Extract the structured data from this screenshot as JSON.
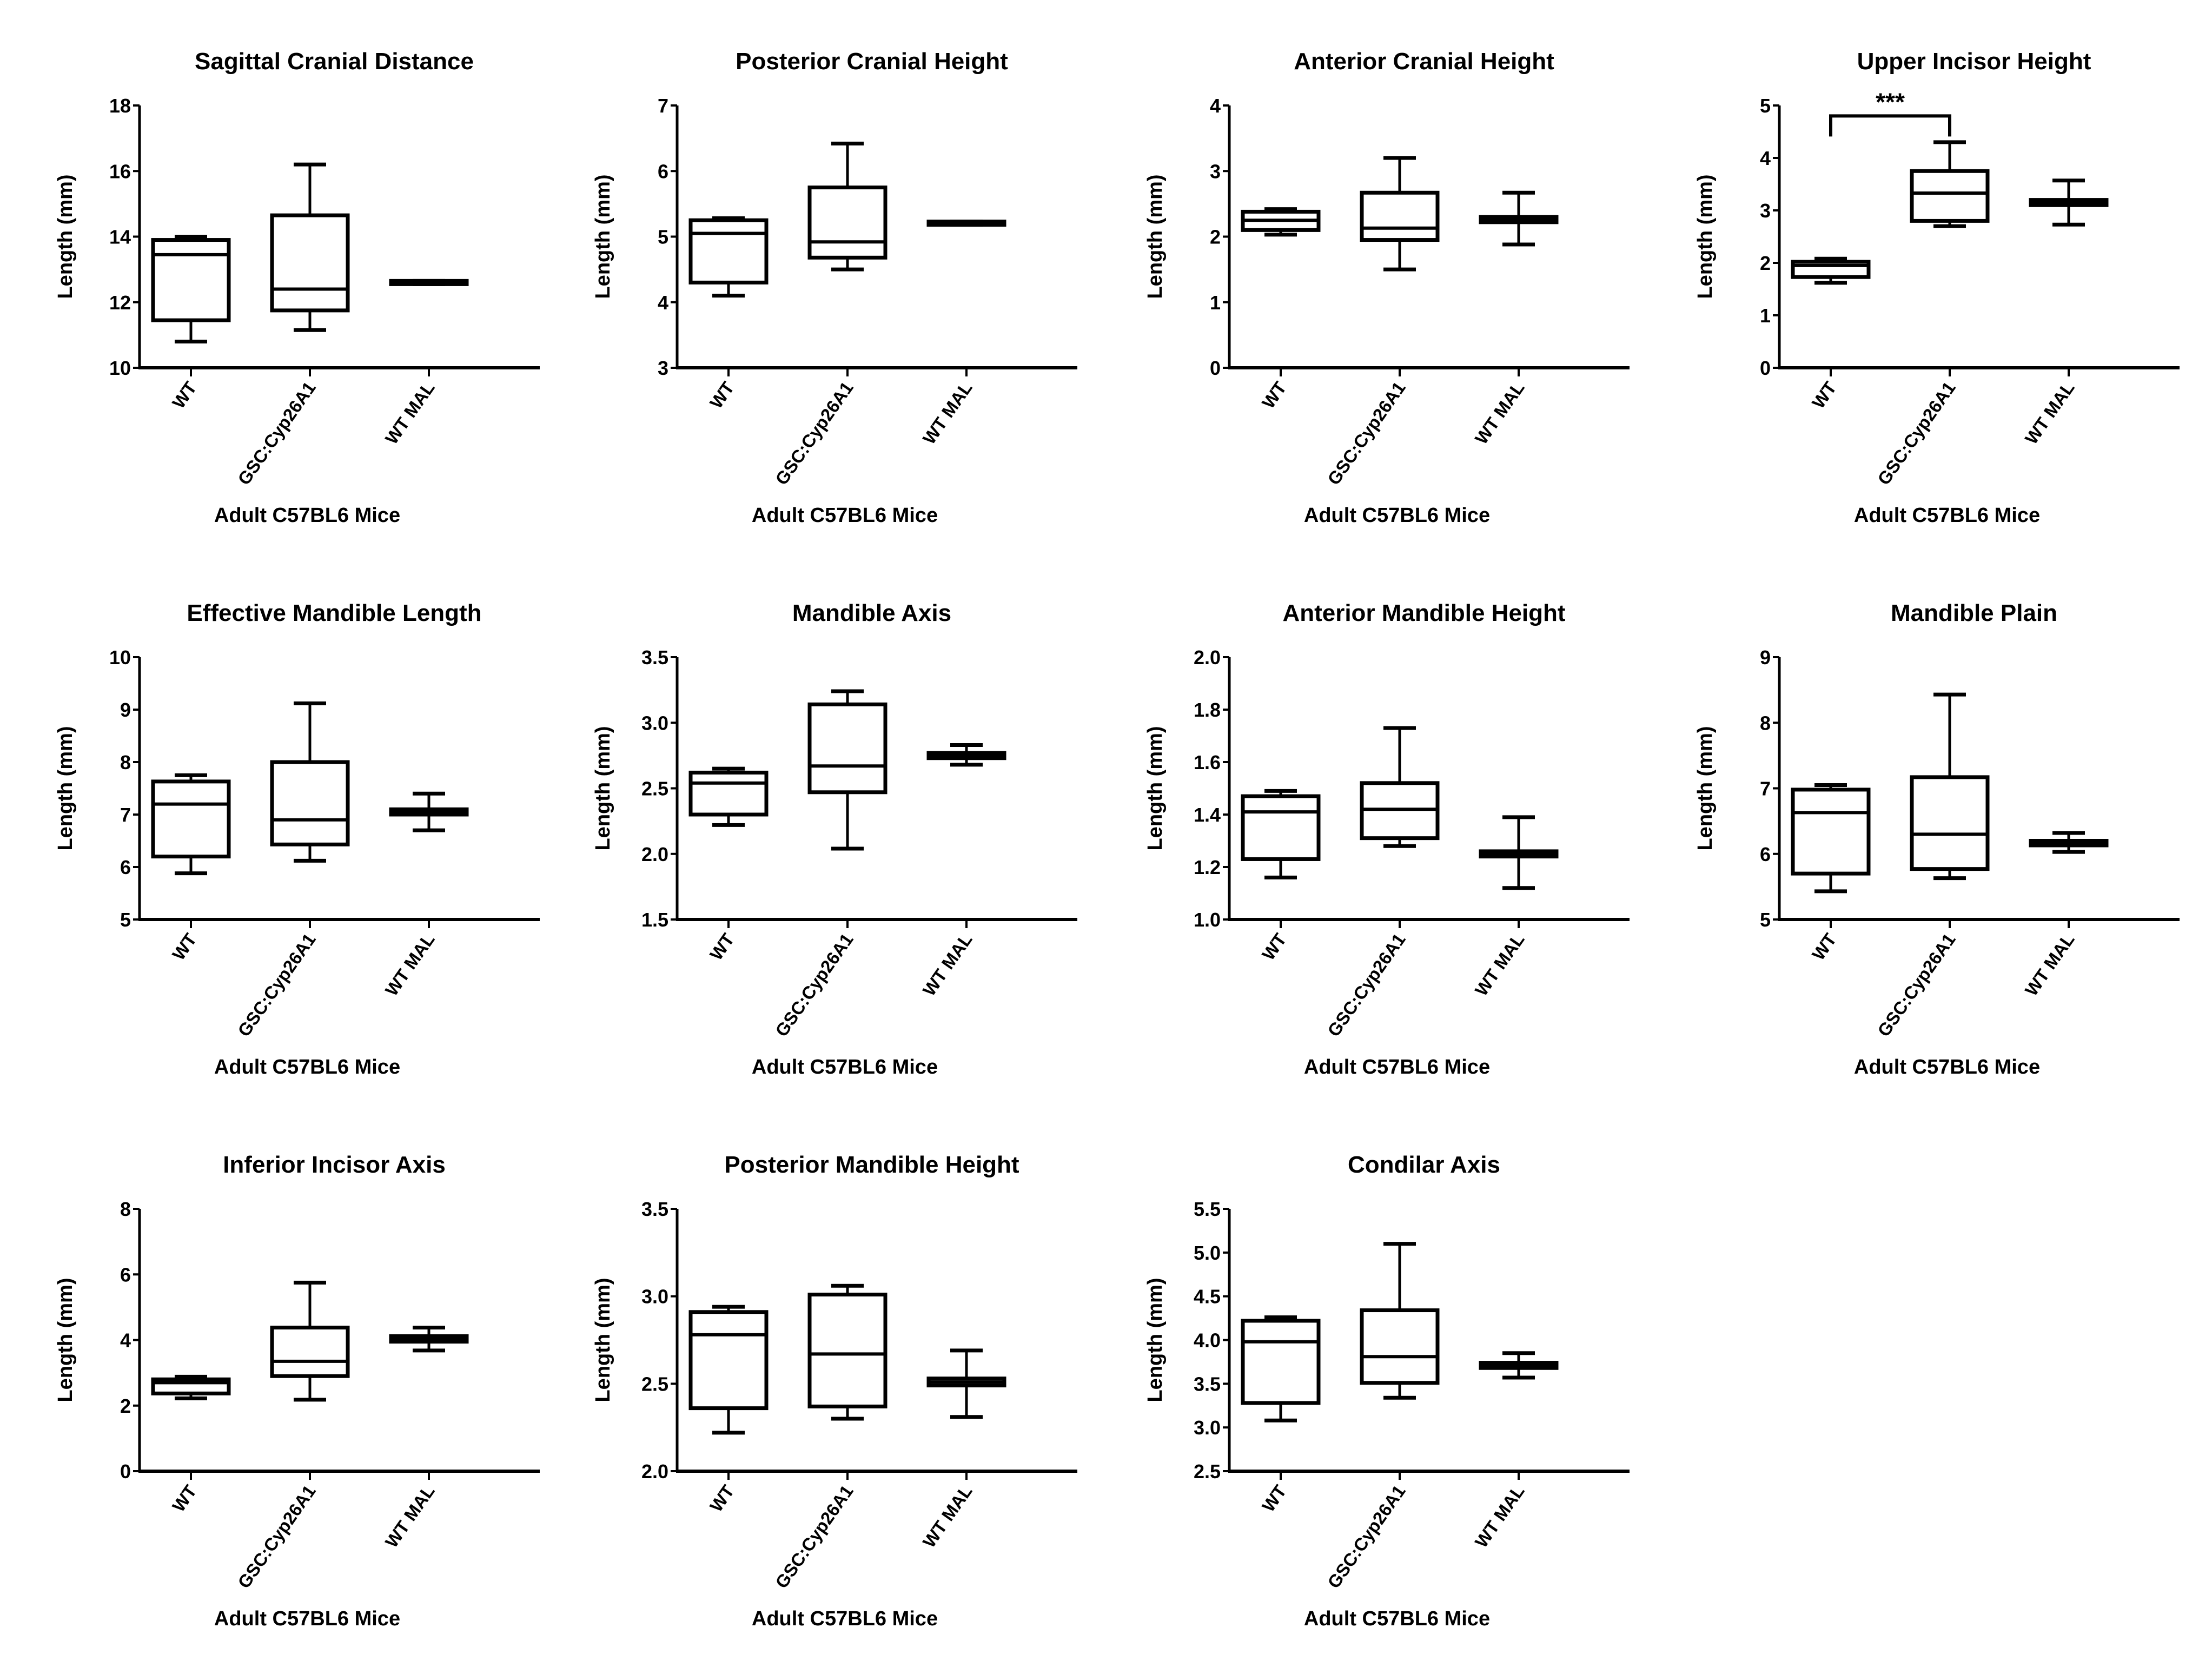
{
  "figure": {
    "shared_xlabel": "Adult C57BL6 Mice",
    "shared_ylabel": "Length (mm)",
    "categories": [
      "WT",
      "GSC:Cyp26A1",
      "WT MAL"
    ]
  },
  "chart_data": [
    {
      "type": "box",
      "title": "Sagittal Cranial Distance",
      "xlabel": "Adult C57BL6 Mice",
      "ylabel": "Length (mm)",
      "categories": [
        "WT",
        "GSC:Cyp26A1",
        "WT MAL"
      ],
      "ylim": [
        10,
        18
      ],
      "yticks": [
        10,
        12,
        14,
        16,
        18
      ],
      "ytick_labels": [
        "10",
        "12",
        "14",
        "16",
        "18"
      ],
      "boxes": [
        {
          "min": 10.8,
          "q1": 11.45,
          "median": 13.45,
          "q3": 13.9,
          "max": 14.0
        },
        {
          "min": 11.15,
          "q1": 11.75,
          "median": 12.4,
          "q3": 14.65,
          "max": 16.2
        },
        {
          "min": 12.55,
          "q1": 12.55,
          "median": 12.6,
          "q3": 12.65,
          "max": 12.65
        }
      ],
      "annotations": []
    },
    {
      "type": "box",
      "title": "Posterior Cranial Height",
      "xlabel": "Adult C57BL6 Mice",
      "ylabel": "Length (mm)",
      "categories": [
        "WT",
        "GSC:Cyp26A1",
        "WT MAL"
      ],
      "ylim": [
        3,
        7
      ],
      "yticks": [
        3,
        4,
        5,
        6,
        7
      ],
      "ytick_labels": [
        "3",
        "4",
        "5",
        "6",
        "7"
      ],
      "boxes": [
        {
          "min": 4.1,
          "q1": 4.3,
          "median": 5.05,
          "q3": 5.25,
          "max": 5.28
        },
        {
          "min": 4.5,
          "q1": 4.68,
          "median": 4.92,
          "q3": 5.75,
          "max": 6.42
        },
        {
          "min": 5.18,
          "q1": 5.18,
          "median": 5.2,
          "q3": 5.23,
          "max": 5.23
        }
      ],
      "annotations": []
    },
    {
      "type": "box",
      "title": "Anterior Cranial Height",
      "xlabel": "Adult C57BL6 Mice",
      "ylabel": "Length (mm)",
      "categories": [
        "WT",
        "GSC:Cyp26A1",
        "WT MAL"
      ],
      "ylim": [
        0,
        4
      ],
      "yticks": [
        0,
        1,
        2,
        3,
        4
      ],
      "ytick_labels": [
        "0",
        "1",
        "2",
        "3",
        "4"
      ],
      "boxes": [
        {
          "min": 2.03,
          "q1": 2.1,
          "median": 2.25,
          "q3": 2.38,
          "max": 2.42
        },
        {
          "min": 1.5,
          "q1": 1.95,
          "median": 2.13,
          "q3": 2.67,
          "max": 3.2
        },
        {
          "min": 1.88,
          "q1": 2.22,
          "median": 2.27,
          "q3": 2.3,
          "max": 2.67
        }
      ],
      "annotations": []
    },
    {
      "type": "box",
      "title": "Upper Incisor Height",
      "xlabel": "Adult C57BL6 Mice",
      "ylabel": "Length (mm)",
      "categories": [
        "WT",
        "GSC:Cyp26A1",
        "WT MAL"
      ],
      "ylim": [
        0,
        5
      ],
      "yticks": [
        0,
        1,
        2,
        3,
        4,
        5
      ],
      "ytick_labels": [
        "0",
        "1",
        "2",
        "3",
        "4",
        "5"
      ],
      "boxes": [
        {
          "min": 1.62,
          "q1": 1.73,
          "median": 1.95,
          "q3": 2.02,
          "max": 2.08
        },
        {
          "min": 2.7,
          "q1": 2.8,
          "median": 3.33,
          "q3": 3.75,
          "max": 4.3
        },
        {
          "min": 2.73,
          "q1": 3.1,
          "median": 3.15,
          "q3": 3.2,
          "max": 3.57
        }
      ],
      "annotations": [
        {
          "type": "significance",
          "from": "WT",
          "to": "GSC:Cyp26A1",
          "label": "***",
          "y": 4.8
        }
      ]
    },
    {
      "type": "box",
      "title": "Effective Mandible Length",
      "xlabel": "Adult C57BL6 Mice",
      "ylabel": "Length (mm)",
      "categories": [
        "WT",
        "GSC:Cyp26A1",
        "WT MAL"
      ],
      "ylim": [
        5,
        10
      ],
      "yticks": [
        5,
        6,
        7,
        8,
        9,
        10
      ],
      "ytick_labels": [
        "5",
        "6",
        "7",
        "8",
        "9",
        "10"
      ],
      "boxes": [
        {
          "min": 5.88,
          "q1": 6.2,
          "median": 7.2,
          "q3": 7.63,
          "max": 7.75
        },
        {
          "min": 6.12,
          "q1": 6.43,
          "median": 6.9,
          "q3": 8.0,
          "max": 9.12
        },
        {
          "min": 6.7,
          "q1": 7.0,
          "median": 7.05,
          "q3": 7.1,
          "max": 7.4
        }
      ],
      "annotations": []
    },
    {
      "type": "box",
      "title": "Mandible Axis",
      "xlabel": "Adult C57BL6 Mice",
      "ylabel": "Length (mm)",
      "categories": [
        "WT",
        "GSC:Cyp26A1",
        "WT MAL"
      ],
      "ylim": [
        1.5,
        3.5
      ],
      "yticks": [
        1.5,
        2.0,
        2.5,
        3.0,
        3.5
      ],
      "ytick_labels": [
        "1.5",
        "2.0",
        "2.5",
        "3.0",
        "3.5"
      ],
      "boxes": [
        {
          "min": 2.22,
          "q1": 2.3,
          "median": 2.54,
          "q3": 2.62,
          "max": 2.65
        },
        {
          "min": 2.04,
          "q1": 2.47,
          "median": 2.67,
          "q3": 3.14,
          "max": 3.24
        },
        {
          "min": 2.68,
          "q1": 2.73,
          "median": 2.75,
          "q3": 2.77,
          "max": 2.83
        }
      ],
      "annotations": []
    },
    {
      "type": "box",
      "title": "Anterior Mandible Height",
      "xlabel": "Adult C57BL6 Mice",
      "ylabel": "Length (mm)",
      "categories": [
        "WT",
        "GSC:Cyp26A1",
        "WT MAL"
      ],
      "ylim": [
        1.0,
        2.0
      ],
      "yticks": [
        1.0,
        1.2,
        1.4,
        1.6,
        1.8,
        2.0
      ],
      "ytick_labels": [
        "1.0",
        "1.2",
        "1.4",
        "1.6",
        "1.8",
        "2.0"
      ],
      "boxes": [
        {
          "min": 1.16,
          "q1": 1.23,
          "median": 1.41,
          "q3": 1.47,
          "max": 1.49
        },
        {
          "min": 1.28,
          "q1": 1.31,
          "median": 1.42,
          "q3": 1.52,
          "max": 1.73
        },
        {
          "min": 1.12,
          "q1": 1.24,
          "median": 1.25,
          "q3": 1.26,
          "max": 1.39
        }
      ],
      "annotations": []
    },
    {
      "type": "box",
      "title": "Mandible Plain",
      "xlabel": "Adult C57BL6 Mice",
      "ylabel": "Length (mm)",
      "categories": [
        "WT",
        "GSC:Cyp26A1",
        "WT MAL"
      ],
      "ylim": [
        5,
        9
      ],
      "yticks": [
        5,
        6,
        7,
        8,
        9
      ],
      "ytick_labels": [
        "5",
        "6",
        "7",
        "8",
        "9"
      ],
      "boxes": [
        {
          "min": 5.43,
          "q1": 5.7,
          "median": 6.63,
          "q3": 6.98,
          "max": 7.05
        },
        {
          "min": 5.63,
          "q1": 5.77,
          "median": 6.3,
          "q3": 7.17,
          "max": 8.43
        },
        {
          "min": 6.03,
          "q1": 6.13,
          "median": 6.17,
          "q3": 6.2,
          "max": 6.32
        }
      ],
      "annotations": []
    },
    {
      "type": "box",
      "title": "Inferior Incisor Axis",
      "xlabel": "Adult C57BL6 Mice",
      "ylabel": "Length (mm)",
      "categories": [
        "WT",
        "GSC:Cyp26A1",
        "WT MAL"
      ],
      "ylim": [
        0,
        8
      ],
      "yticks": [
        0,
        2,
        4,
        6,
        8
      ],
      "ytick_labels": [
        "0",
        "2",
        "4",
        "6",
        "8"
      ],
      "boxes": [
        {
          "min": 2.22,
          "q1": 2.37,
          "median": 2.7,
          "q3": 2.8,
          "max": 2.88
        },
        {
          "min": 2.18,
          "q1": 2.9,
          "median": 3.35,
          "q3": 4.38,
          "max": 5.75
        },
        {
          "min": 3.68,
          "q1": 3.95,
          "median": 4.03,
          "q3": 4.12,
          "max": 4.38
        }
      ],
      "annotations": []
    },
    {
      "type": "box",
      "title": "Posterior Mandible Height",
      "xlabel": "Adult C57BL6 Mice",
      "ylabel": "Length (mm)",
      "categories": [
        "WT",
        "GSC:Cyp26A1",
        "WT MAL"
      ],
      "ylim": [
        2.0,
        3.5
      ],
      "yticks": [
        2.0,
        2.5,
        3.0,
        3.5
      ],
      "ytick_labels": [
        "2.0",
        "2.5",
        "3.0",
        "3.5"
      ],
      "boxes": [
        {
          "min": 2.22,
          "q1": 2.36,
          "median": 2.78,
          "q3": 2.91,
          "max": 2.94
        },
        {
          "min": 2.3,
          "q1": 2.37,
          "median": 2.67,
          "q3": 3.01,
          "max": 3.06
        },
        {
          "min": 2.31,
          "q1": 2.49,
          "median": 2.51,
          "q3": 2.53,
          "max": 2.69
        }
      ],
      "annotations": []
    },
    {
      "type": "box",
      "title": "Condilar Axis",
      "xlabel": "Adult C57BL6 Mice",
      "ylabel": "Length (mm)",
      "categories": [
        "WT",
        "GSC:Cyp26A1",
        "WT MAL"
      ],
      "ylim": [
        2.5,
        5.5
      ],
      "yticks": [
        2.5,
        3.0,
        3.5,
        4.0,
        4.5,
        5.0,
        5.5
      ],
      "ytick_labels": [
        "2.5",
        "3.0",
        "3.5",
        "4.0",
        "4.5",
        "5.0",
        "5.5"
      ],
      "boxes": [
        {
          "min": 3.08,
          "q1": 3.28,
          "median": 3.98,
          "q3": 4.22,
          "max": 4.26
        },
        {
          "min": 3.34,
          "q1": 3.51,
          "median": 3.81,
          "q3": 4.34,
          "max": 5.1
        },
        {
          "min": 3.57,
          "q1": 3.68,
          "median": 3.71,
          "q3": 3.74,
          "max": 3.85
        }
      ],
      "annotations": []
    }
  ]
}
